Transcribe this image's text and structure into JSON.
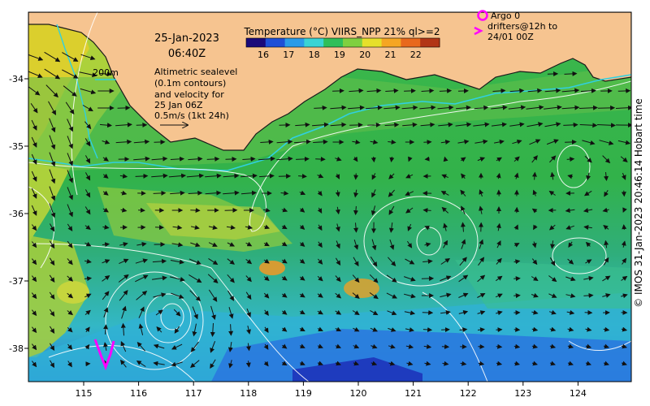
{
  "map": {
    "date": "25-Jan-2023",
    "time": "06:40Z",
    "colorbar": {
      "title": "Temperature (°C) VIIRS_NPP 21% ql>=2",
      "ticks": [
        "16",
        "17",
        "18",
        "19",
        "20",
        "21",
        "22"
      ],
      "colors": [
        "#1a0a7a",
        "#1e4fd6",
        "#2a9be8",
        "#3ad4d4",
        "#2fbf5a",
        "#7fd040",
        "#e6e02a",
        "#f5a623",
        "#e8681c",
        "#b23516"
      ]
    },
    "bathymetry_label": "200m",
    "altimetry_note": [
      "Altimetric sealevel",
      "(0.1m contours)",
      "and velocity for",
      "25 Jan 06Z",
      "0.5m/s (1kt 24h)"
    ],
    "legend": {
      "argo": "Argo 0",
      "drifters": [
        "drifters@12h to",
        "24/01 00Z"
      ]
    },
    "x_ticks": [
      "115",
      "116",
      "117",
      "118",
      "119",
      "120",
      "121",
      "122",
      "123",
      "124"
    ],
    "y_ticks": [
      "-34",
      "-35",
      "-36",
      "-37",
      "-38"
    ],
    "credit": "© IMOS 31-Jan-2023 20:46:14 Hobart time",
    "colors": {
      "land": "#f6c490",
      "coast": "#1a1a1a",
      "isobath": "#30d0e0",
      "contour": "#ffffff",
      "argo_drifter": "#ff00ff",
      "arrow": "#111111"
    }
  }
}
